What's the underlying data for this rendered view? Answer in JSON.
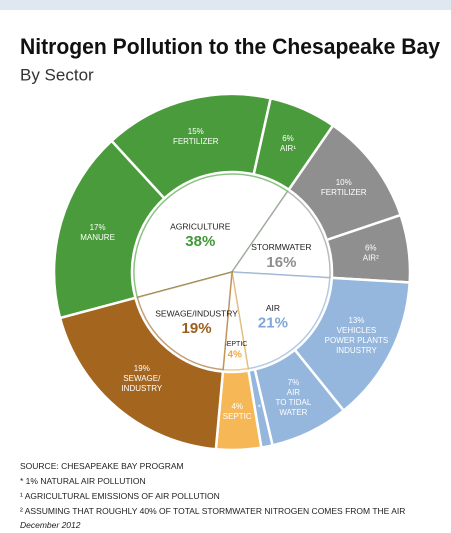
{
  "chart_data": {
    "type": "nested-donut",
    "title": "Nitrogen Pollution to the Chesapeake Bay",
    "subtitle": "By Sector",
    "inner": {
      "categories": [
        "AGRICULTURE",
        "STORMWATER",
        "AIR",
        "SEPTIC",
        "SEWAGE/INDUSTRY"
      ],
      "values": [
        38,
        16,
        21,
        4,
        19
      ],
      "value_labels": [
        "38%",
        "16%",
        "21%",
        "4%",
        "19%"
      ],
      "colors": [
        "#3f9a36",
        "#8e8e8e",
        "#7fa6d6",
        "#f0a83c",
        "#9a5f1c"
      ]
    },
    "outer": {
      "names": [
        [
          "MANURE"
        ],
        [
          "FERTILIZER"
        ],
        [
          "AIR¹"
        ],
        [
          "FERTILIZER"
        ],
        [
          "AIR²"
        ],
        [
          "VEHICLES",
          "POWER PLANTS",
          "INDUSTRY"
        ],
        [
          "AIR",
          "TO TIDAL",
          "WATER"
        ],
        [
          "*"
        ],
        [
          "SEPTIC"
        ],
        [
          "SEWAGE/",
          "INDUSTRY"
        ]
      ],
      "values": [
        17,
        15,
        6,
        10,
        6,
        13,
        7,
        1,
        4,
        19
      ],
      "value_labels": [
        "17%",
        "15%",
        "6%",
        "10%",
        "6%",
        "13%",
        "7%",
        null,
        "4%",
        "19%"
      ],
      "colors": [
        "#4a9b3b",
        "#4a9b3b",
        "#4a9b3b",
        "#8f8f8f",
        "#8f8f8f",
        "#95b6dd",
        "#95b6dd",
        "#95b6dd",
        "#f6b857",
        "#a4651f"
      ]
    }
  },
  "footer": {
    "source": "SOURCE: CHESAPEAKE BAY PROGRAM",
    "notes": [
      "* 1% NATURAL AIR POLLUTION",
      "¹ AGRICULTURAL EMISSIONS OF AIR POLLUTION",
      "² ASSUMING THAT ROUGHLY 40% OF TOTAL STORMWATER NITROGEN COMES FROM THE AIR"
    ],
    "date": "December 2012"
  }
}
